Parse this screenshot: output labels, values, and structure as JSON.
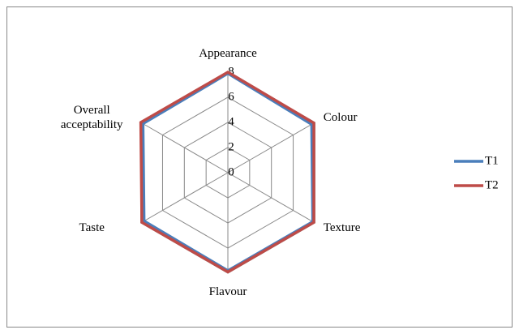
{
  "chart_data": {
    "type": "radar",
    "categories": [
      "Appearance",
      "Colour",
      "Texture",
      "Flavour",
      "Taste",
      "Overall acceptability"
    ],
    "series": [
      {
        "name": "T1",
        "color": "#4a7ebb",
        "values": [
          7.9,
          7.7,
          7.8,
          7.8,
          7.7,
          7.8
        ]
      },
      {
        "name": "T2",
        "color": "#be4b48",
        "values": [
          8.0,
          7.9,
          7.9,
          7.9,
          7.9,
          8.0
        ]
      }
    ],
    "rlim": [
      0,
      8
    ],
    "rticks": [
      0,
      2,
      4,
      6,
      8
    ],
    "grid": true,
    "legend": "right"
  }
}
